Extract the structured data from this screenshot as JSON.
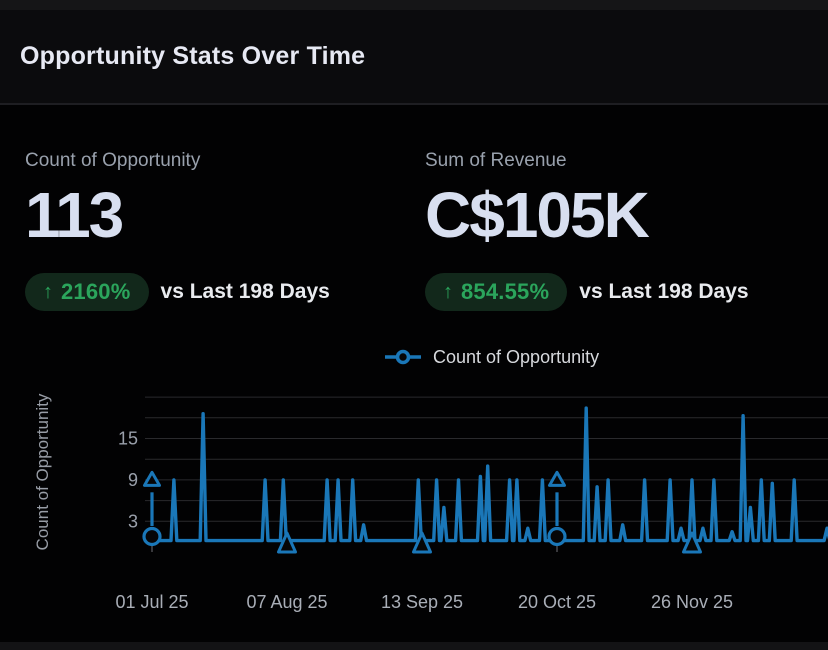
{
  "header": {
    "title": "Opportunity Stats Over Time"
  },
  "kpis": [
    {
      "label": "Count of Opportunity",
      "value": "113",
      "delta_arrow": "↑",
      "delta": "2160%",
      "comparison": "vs Last 198 Days"
    },
    {
      "label": "Sum of Revenue",
      "value": "C$105K",
      "delta_arrow": "↑",
      "delta": "854.55%",
      "comparison": "vs Last 198 Days"
    }
  ],
  "colors": {
    "accent_blue": "#1a77b8",
    "positive_green": "#2ba55c",
    "pill_bg": "#12281b",
    "grid": "#2a2a2d",
    "axis_text": "#a0a5af",
    "background": "#020203"
  },
  "chart_data": {
    "type": "line",
    "series": [
      {
        "name": "Count of Opportunity",
        "color": "#1a77b8",
        "marker": "open-circle"
      }
    ],
    "ylabel": "Count of Opportunity",
    "y_ticks": [
      3,
      9,
      15
    ],
    "grid_values": [
      3,
      6,
      9,
      12,
      15,
      18,
      21
    ],
    "ylim": [
      0,
      21
    ],
    "x_ticks": [
      {
        "day": 0,
        "label": "01 Jul 25"
      },
      {
        "day": 37,
        "label": "07 Aug 25"
      },
      {
        "day": 74,
        "label": "13 Sep 25"
      },
      {
        "day": 111,
        "label": "20 Oct 25"
      },
      {
        "day": 148,
        "label": "26 Nov 25"
      }
    ],
    "baseline_value": 0.2,
    "spikes": [
      [
        6,
        9
      ],
      [
        14,
        18.6
      ],
      [
        31,
        9
      ],
      [
        36,
        9
      ],
      [
        48,
        9
      ],
      [
        51,
        9
      ],
      [
        55,
        9
      ],
      [
        58,
        2.5
      ],
      [
        73,
        9
      ],
      [
        78,
        9
      ],
      [
        80,
        5
      ],
      [
        84,
        9
      ],
      [
        90,
        9.5
      ],
      [
        92,
        11
      ],
      [
        98,
        9
      ],
      [
        100,
        9
      ],
      [
        103,
        2
      ],
      [
        107,
        9
      ],
      [
        119,
        19.4
      ],
      [
        122,
        8
      ],
      [
        125,
        9
      ],
      [
        129,
        2.5
      ],
      [
        135,
        9
      ],
      [
        142,
        9
      ],
      [
        145,
        2
      ],
      [
        148,
        9
      ],
      [
        151,
        2
      ],
      [
        154,
        9
      ],
      [
        159,
        1.5
      ],
      [
        162,
        18.3
      ],
      [
        164,
        5
      ],
      [
        167,
        9
      ],
      [
        170,
        8.5
      ],
      [
        176,
        9
      ],
      [
        185,
        2
      ],
      [
        187,
        8
      ]
    ],
    "annotations": [
      {
        "day": 0,
        "type": "circle-arrow"
      },
      {
        "day": 37,
        "type": "triangle"
      },
      {
        "day": 74,
        "type": "triangle"
      },
      {
        "day": 111,
        "type": "circle-arrow"
      },
      {
        "day": 148,
        "type": "triangle"
      }
    ]
  }
}
